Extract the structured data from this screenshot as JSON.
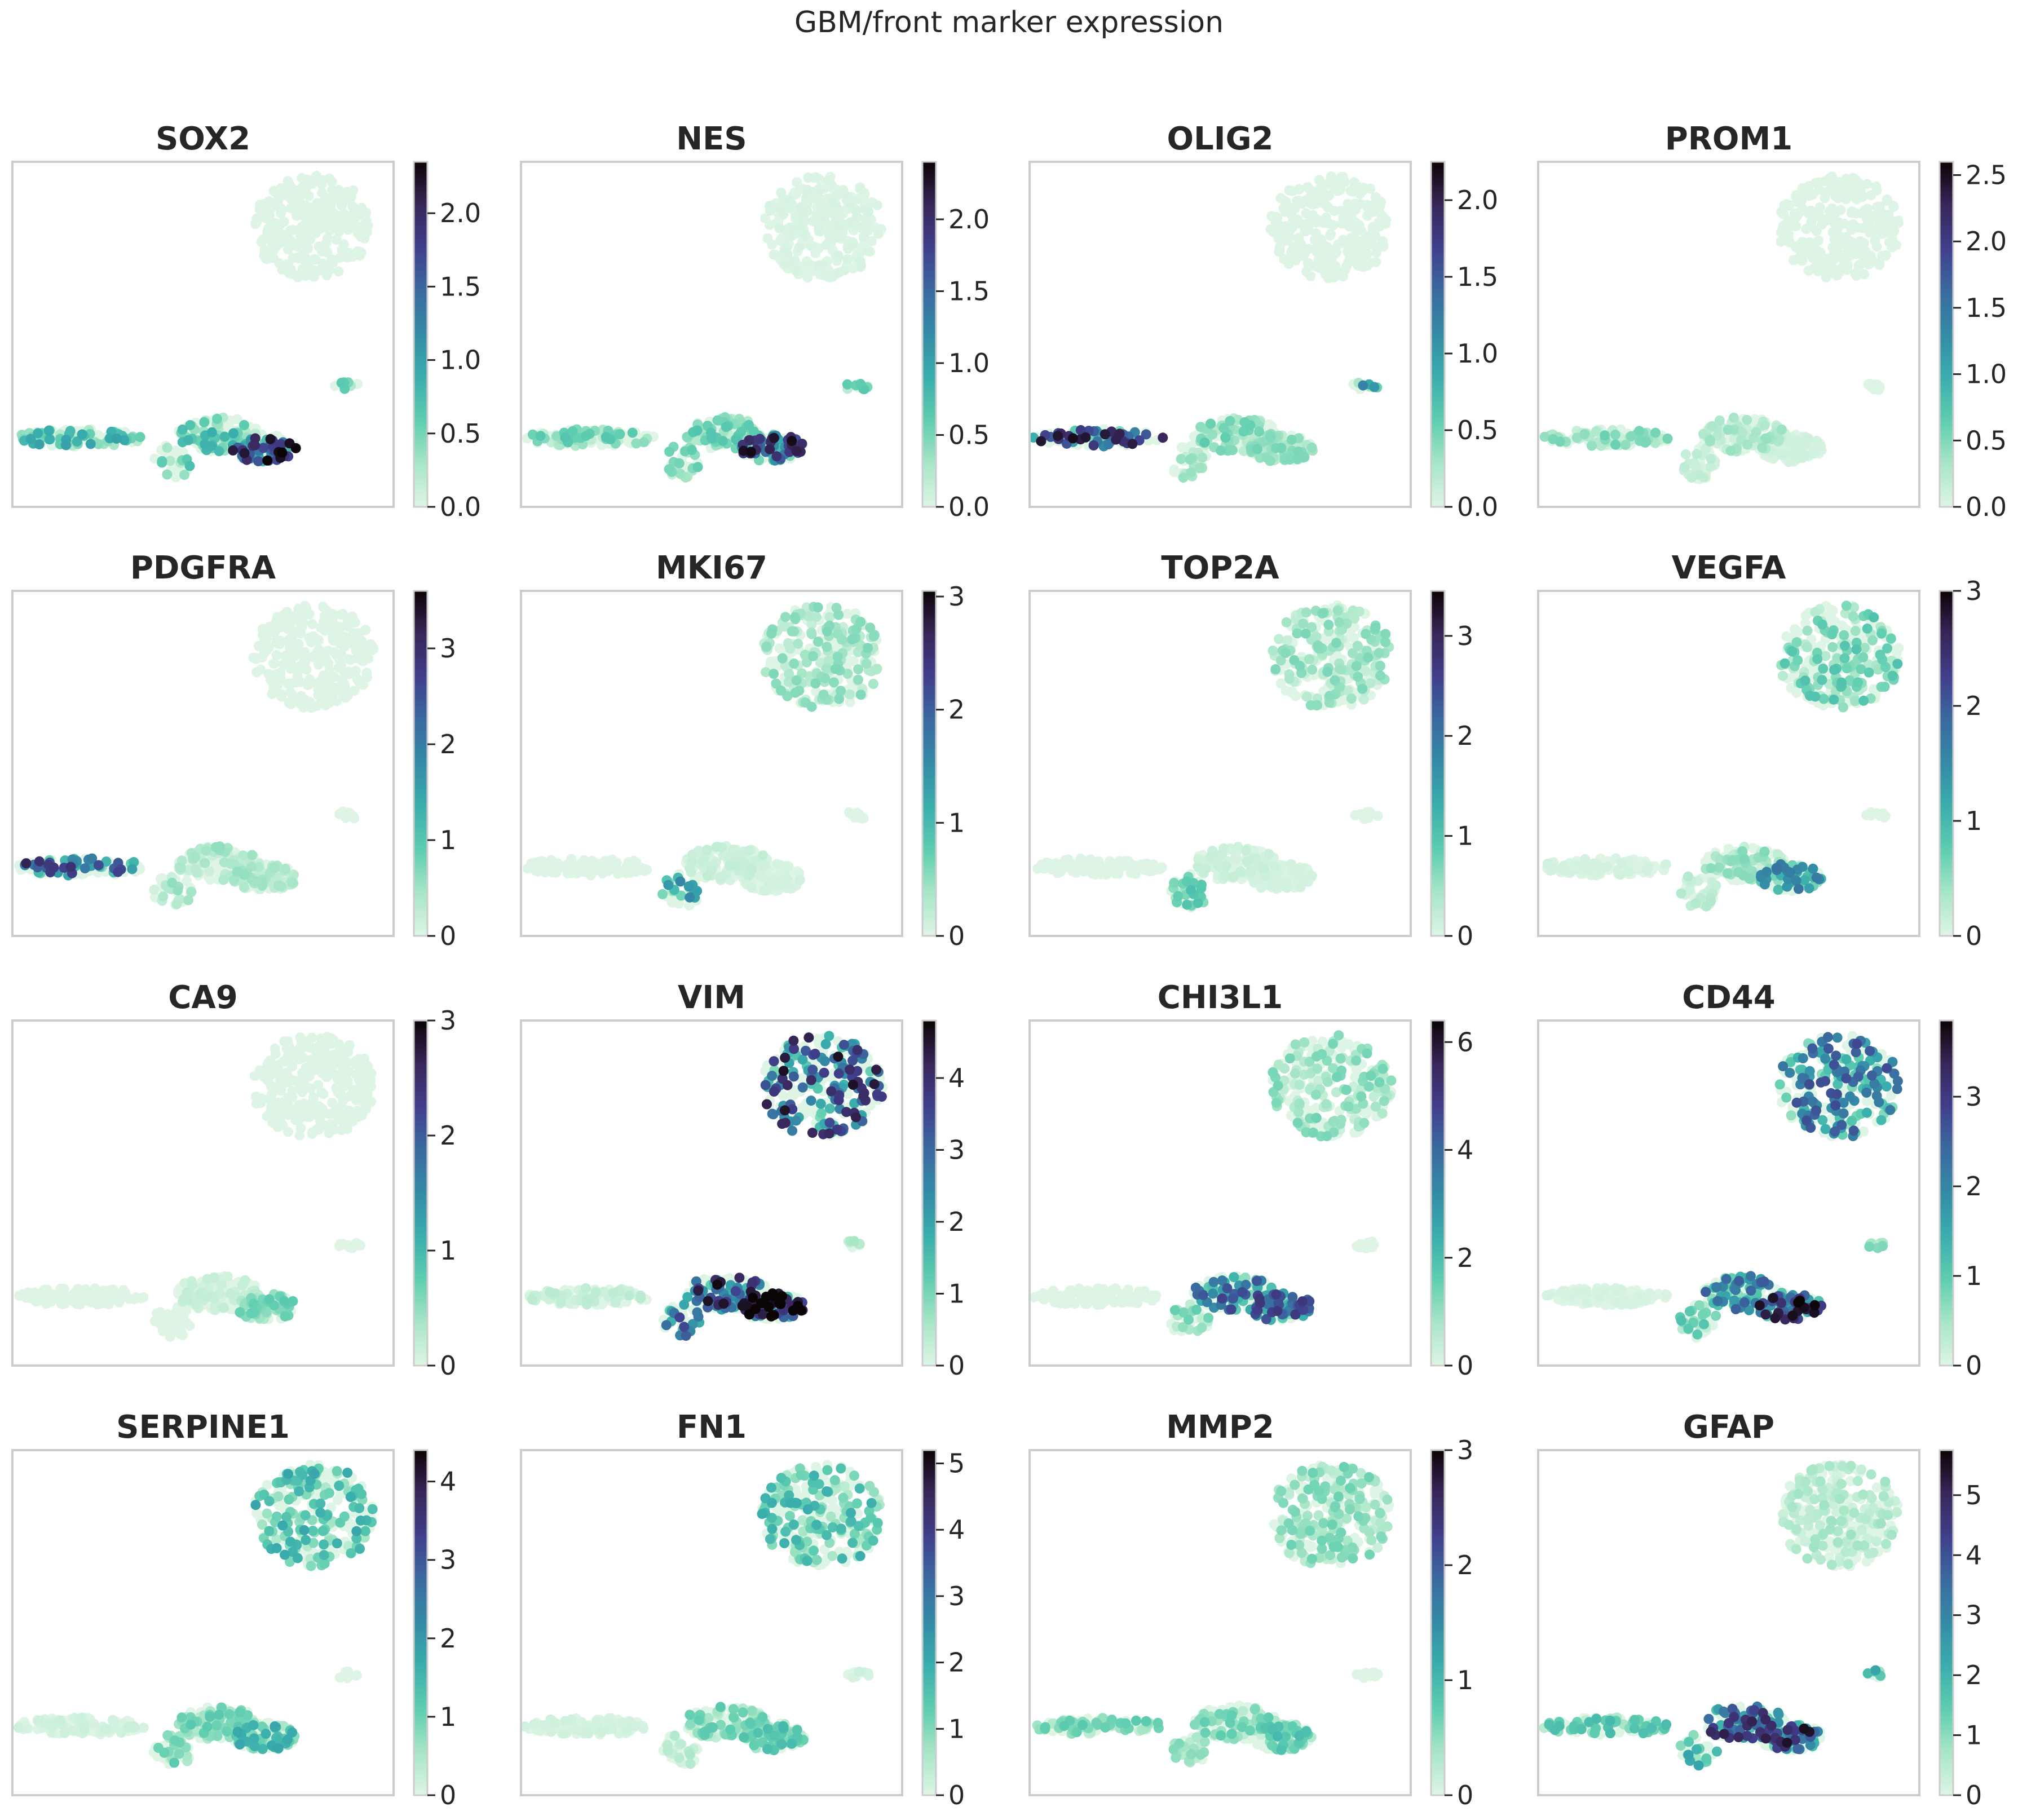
{
  "figure": {
    "suptitle": "GBM/front marker expression"
  },
  "colormap": [
    "#def5e5",
    "#a7e6c6",
    "#5fcdb0",
    "#3aaead",
    "#348ba6",
    "#3a6aa0",
    "#403f8c",
    "#382659",
    "#0b0405"
  ],
  "chart_data": [
    {
      "type": "scatter",
      "title": "SOX2",
      "vmax": 2.35,
      "ticks": [
        0.0,
        0.5,
        1.0,
        1.5,
        2.0
      ],
      "tick_labels": [
        "0.0",
        "0.5",
        "1.0",
        "1.5",
        "2.0"
      ],
      "expression": {
        "top": 0.0,
        "small": 0.35,
        "left": 0.5,
        "mid": 0.45,
        "right": 1.2,
        "drop": 0.4
      }
    },
    {
      "type": "scatter",
      "title": "NES",
      "vmax": 2.4,
      "ticks": [
        0.0,
        0.5,
        1.0,
        1.5,
        2.0
      ],
      "tick_labels": [
        "0.0",
        "0.5",
        "1.0",
        "1.5",
        "2.0"
      ],
      "expression": {
        "top": 0.02,
        "small": 0.4,
        "left": 0.35,
        "mid": 0.35,
        "right": 1.2,
        "drop": 0.3
      }
    },
    {
      "type": "scatter",
      "title": "OLIG2",
      "vmax": 2.25,
      "ticks": [
        0.0,
        0.5,
        1.0,
        1.5,
        2.0
      ],
      "tick_labels": [
        "0.0",
        "0.5",
        "1.0",
        "1.5",
        "2.0"
      ],
      "expression": {
        "top": 0.0,
        "small": 0.6,
        "left": 1.1,
        "mid": 0.3,
        "right": 0.25,
        "drop": 0.2
      }
    },
    {
      "type": "scatter",
      "title": "PROM1",
      "vmax": 2.6,
      "ticks": [
        0.0,
        0.5,
        1.0,
        1.5,
        2.0,
        2.5
      ],
      "tick_labels": [
        "0.0",
        "0.5",
        "1.0",
        "1.5",
        "2.0",
        "2.5"
      ],
      "expression": {
        "top": 0.0,
        "small": 0.0,
        "left": 0.3,
        "mid": 0.2,
        "right": 0.05,
        "drop": 0.1
      }
    },
    {
      "type": "scatter",
      "title": "PDGFRA",
      "vmax": 3.6,
      "ticks": [
        0,
        1,
        2,
        3
      ],
      "tick_labels": [
        "0",
        "1",
        "2",
        "3"
      ],
      "expression": {
        "top": 0.0,
        "small": 0.0,
        "left": 1.6,
        "mid": 0.3,
        "right": 0.25,
        "drop": 0.3
      }
    },
    {
      "type": "scatter",
      "title": "MKI67",
      "vmax": 3.05,
      "ticks": [
        0,
        1,
        2,
        3
      ],
      "tick_labels": [
        "0",
        "1",
        "2",
        "3"
      ],
      "expression": {
        "top": 0.3,
        "small": 0.0,
        "left": 0.0,
        "mid": 0.1,
        "right": 0.05,
        "drop": 0.8
      }
    },
    {
      "type": "scatter",
      "title": "TOP2A",
      "vmax": 3.45,
      "ticks": [
        0,
        1,
        2,
        3
      ],
      "tick_labels": [
        "0",
        "1",
        "2",
        "3"
      ],
      "expression": {
        "top": 0.35,
        "small": 0.0,
        "left": 0.0,
        "mid": 0.1,
        "right": 0.05,
        "drop": 0.6
      }
    },
    {
      "type": "scatter",
      "title": "VEGFA",
      "vmax": 3.0,
      "ticks": [
        0,
        1,
        2,
        3
      ],
      "tick_labels": [
        "0",
        "1",
        "2",
        "3"
      ],
      "expression": {
        "top": 0.45,
        "small": 0.0,
        "left": 0.05,
        "mid": 0.3,
        "right": 0.9,
        "drop": 0.15
      }
    },
    {
      "type": "scatter",
      "title": "CA9",
      "vmax": 3.0,
      "ticks": [
        0,
        1,
        2,
        3
      ],
      "tick_labels": [
        "0",
        "1",
        "2",
        "3"
      ],
      "expression": {
        "top": 0.0,
        "small": 0.0,
        "left": 0.0,
        "mid": 0.1,
        "right": 0.4,
        "drop": 0.0
      }
    },
    {
      "type": "scatter",
      "title": "VIM",
      "vmax": 4.8,
      "ticks": [
        0,
        1,
        2,
        3,
        4
      ],
      "tick_labels": [
        "0",
        "1",
        "2",
        "3",
        "4"
      ],
      "expression": {
        "top": 2.3,
        "small": 0.4,
        "left": 0.2,
        "mid": 2.4,
        "right": 3.0,
        "drop": 1.8
      }
    },
    {
      "type": "scatter",
      "title": "CHI3L1",
      "vmax": 6.4,
      "ticks": [
        0,
        2,
        4,
        6
      ],
      "tick_labels": [
        "0",
        "2",
        "4",
        "6"
      ],
      "expression": {
        "top": 0.7,
        "small": 0.0,
        "left": 0.0,
        "mid": 2.4,
        "right": 2.6,
        "drop": 0.8
      }
    },
    {
      "type": "scatter",
      "title": "CD44",
      "vmax": 3.85,
      "ticks": [
        0,
        1,
        2,
        3
      ],
      "tick_labels": [
        "0",
        "1",
        "2",
        "3"
      ],
      "expression": {
        "top": 1.4,
        "small": 0.4,
        "left": 0.05,
        "mid": 1.3,
        "right": 2.0,
        "drop": 0.6
      }
    },
    {
      "type": "scatter",
      "title": "SERPINE1",
      "vmax": 4.4,
      "ticks": [
        0,
        1,
        2,
        3,
        4
      ],
      "tick_labels": [
        "0",
        "1",
        "2",
        "3",
        "4"
      ],
      "expression": {
        "top": 0.9,
        "small": 0.0,
        "left": 0.1,
        "mid": 0.6,
        "right": 0.9,
        "drop": 0.6
      }
    },
    {
      "type": "scatter",
      "title": "FN1",
      "vmax": 5.2,
      "ticks": [
        0,
        1,
        2,
        3,
        4,
        5
      ],
      "tick_labels": [
        "0",
        "1",
        "2",
        "3",
        "4",
        "5"
      ],
      "expression": {
        "top": 1.0,
        "small": 0.1,
        "left": 0.1,
        "mid": 0.7,
        "right": 0.9,
        "drop": 0.3
      }
    },
    {
      "type": "scatter",
      "title": "MMP2",
      "vmax": 3.0,
      "ticks": [
        0,
        1,
        2,
        3
      ],
      "tick_labels": [
        "0",
        "1",
        "2",
        "3"
      ],
      "expression": {
        "top": 0.35,
        "small": 0.0,
        "left": 0.4,
        "mid": 0.4,
        "right": 0.5,
        "drop": 0.3
      }
    },
    {
      "type": "scatter",
      "title": "GFAP",
      "vmax": 5.75,
      "ticks": [
        0,
        1,
        2,
        3,
        4,
        5
      ],
      "tick_labels": [
        "0",
        "1",
        "2",
        "3",
        "4",
        "5"
      ],
      "expression": {
        "top": 0.4,
        "small": 1.2,
        "left": 1.0,
        "mid": 2.6,
        "right": 2.8,
        "drop": 1.5
      }
    }
  ]
}
